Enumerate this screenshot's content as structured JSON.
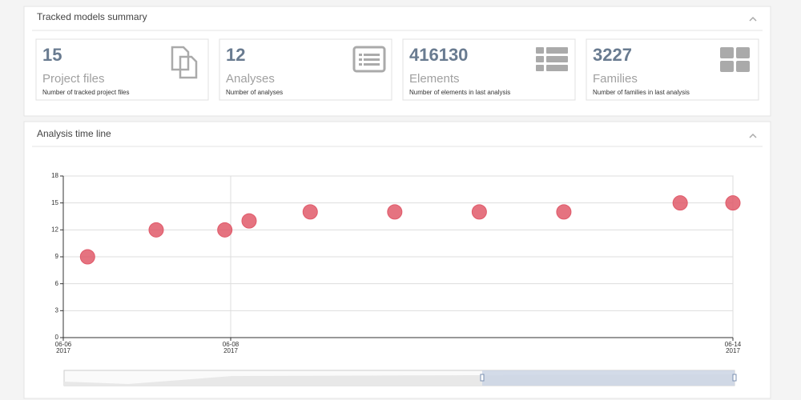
{
  "summary": {
    "title": "Tracked models summary",
    "cards": [
      {
        "value": "15",
        "label": "Project files",
        "description": "Number of tracked project files"
      },
      {
        "value": "12",
        "label": "Analyses",
        "description": "Number of analyses"
      },
      {
        "value": "416130",
        "label": "Elements",
        "description": "Number of elements in last analysis"
      },
      {
        "value": "3227",
        "label": "Families",
        "description": "Number of families in last analysis"
      }
    ]
  },
  "timeline": {
    "title": "Analysis time line"
  },
  "chart_data": {
    "type": "scatter",
    "x": [
      6.29,
      7.11,
      7.93,
      8.22,
      8.95,
      9.96,
      10.97,
      11.98,
      13.37,
      14.0
    ],
    "values": [
      9,
      12,
      12,
      13,
      14,
      14,
      14,
      14,
      15,
      15
    ],
    "color": "#e05a6a",
    "xlim": [
      6,
      14
    ],
    "xticks": [
      {
        "value": 6,
        "label": "06-06\n2017"
      },
      {
        "value": 8,
        "label": "06-08\n2017"
      },
      {
        "value": 14,
        "label": "06-14\n2017"
      }
    ],
    "ylim": [
      0,
      18
    ],
    "yticks": [
      0,
      3,
      6,
      9,
      12,
      15,
      18
    ],
    "grid": true
  }
}
